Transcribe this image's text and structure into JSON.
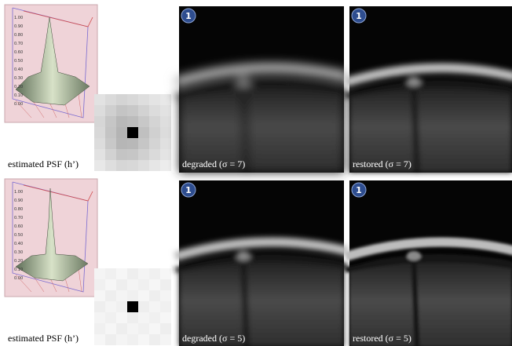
{
  "rows": [
    {
      "psf_label": "estimated PSF (h’)",
      "plot_ticks": [
        "1.00",
        "0.90",
        "0.80",
        "0.70",
        "0.60",
        "0.50",
        "0.40",
        "0.30",
        "0.20",
        "0.10",
        "0.00"
      ],
      "images": [
        {
          "badge": "1",
          "caption": "degraded (σ = 7)"
        },
        {
          "badge": "1",
          "caption": "restored (σ = 7)"
        }
      ]
    },
    {
      "psf_label": "estimated PSF (h’)",
      "plot_ticks": [
        "1.00",
        "0.90",
        "0.80",
        "0.70",
        "0.60",
        "0.50",
        "0.40",
        "0.30",
        "0.20",
        "0.10",
        "0.00"
      ],
      "images": [
        {
          "badge": "1",
          "caption": "degraded (σ = 5)"
        },
        {
          "badge": "1",
          "caption": "restored (σ = 5)"
        }
      ]
    }
  ]
}
